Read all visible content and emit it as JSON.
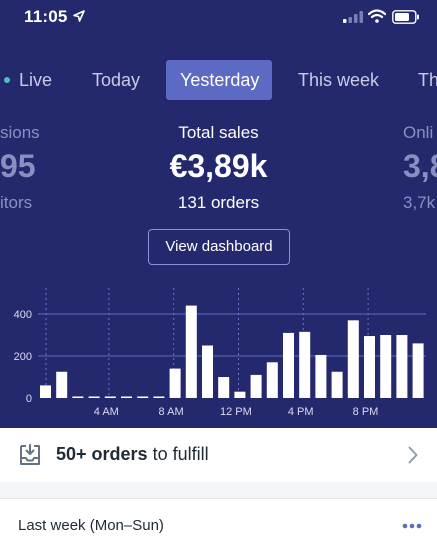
{
  "status_bar": {
    "time": "11:05"
  },
  "tabs": [
    {
      "label": "Live"
    },
    {
      "label": "Today"
    },
    {
      "label": "Yesterday",
      "active": true
    },
    {
      "label": "This week"
    },
    {
      "label": "Th"
    }
  ],
  "metrics": {
    "left": {
      "label": "sions",
      "value": "95",
      "sub": "itors"
    },
    "center": {
      "label": "Total sales",
      "value": "€3,89k",
      "sub": "131 orders"
    },
    "right": {
      "label": "Onli",
      "value": "3,8",
      "sub": "3,7k"
    }
  },
  "view_dashboard_label": "View dashboard",
  "chart_data": {
    "type": "bar",
    "y_ticks": [
      "400",
      "200",
      "0"
    ],
    "x_ticks": [
      "4 AM",
      "8 AM",
      "12 PM",
      "4 PM",
      "8 PM"
    ],
    "ylim": [
      0,
      450
    ],
    "values": [
      60,
      125,
      5,
      5,
      5,
      5,
      5,
      5,
      140,
      440,
      250,
      100,
      30,
      110,
      170,
      310,
      315,
      205,
      125,
      370,
      295,
      300,
      300,
      260
    ],
    "bar_color": "#ffffff",
    "grid_color": "#5c6ac4"
  },
  "fulfill": {
    "count": "50+ orders",
    "suffix": "to fulfill"
  },
  "last_week": {
    "label": "Last week (Mon–Sun)"
  },
  "colors": {
    "hero_bg": "#24296e",
    "active_tab": "#5c6ac4",
    "live_dot": "#47c1bf"
  }
}
